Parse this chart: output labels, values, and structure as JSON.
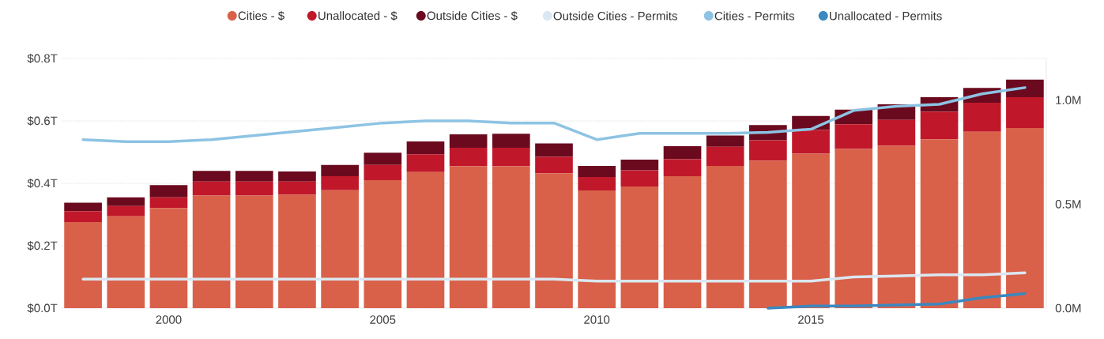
{
  "chart_data": {
    "type": "bar",
    "stacked": true,
    "legend": "top",
    "grid": "y",
    "x": [
      1998,
      1999,
      2000,
      2001,
      2002,
      2003,
      2004,
      2005,
      2006,
      2007,
      2008,
      2009,
      2010,
      2011,
      2012,
      2013,
      2014,
      2015,
      2016,
      2017,
      2018,
      2019,
      2020
    ],
    "xlim": [
      1997.5,
      2020.5
    ],
    "xticks": [
      2000,
      2005,
      2010,
      2015
    ],
    "ylim": [
      0,
      0.8
    ],
    "yticks": [
      {
        "value": 0,
        "label": "$0.0T"
      },
      {
        "value": 0.2,
        "label": "$0.2T"
      },
      {
        "value": 0.4,
        "label": "$0.4T"
      },
      {
        "value": 0.6,
        "label": "$0.6T"
      },
      {
        "value": 0.8,
        "label": "$0.8T"
      }
    ],
    "y2lim": [
      0,
      1.2
    ],
    "y2ticks": [
      {
        "value": 0,
        "label": "0.0M"
      },
      {
        "value": 0.5,
        "label": "0.5M"
      },
      {
        "value": 1.0,
        "label": "1.0M"
      }
    ],
    "series": [
      {
        "name": "Cities - $",
        "color": "#d9614a",
        "values": [
          0.276,
          0.294,
          0.321,
          0.361,
          0.361,
          0.363,
          0.378,
          0.41,
          0.436,
          0.455,
          0.455,
          0.432,
          0.377,
          0.39,
          0.423,
          0.456,
          0.473,
          0.495,
          0.51,
          0.52,
          0.541,
          0.565,
          0.577
        ]
      },
      {
        "name": "Unallocated - $",
        "color": "#c0182a",
        "values": [
          0.035,
          0.033,
          0.034,
          0.045,
          0.045,
          0.043,
          0.045,
          0.049,
          0.057,
          0.059,
          0.059,
          0.053,
          0.043,
          0.052,
          0.054,
          0.061,
          0.065,
          0.076,
          0.079,
          0.083,
          0.088,
          0.093,
          0.099
        ]
      },
      {
        "name": "Outside Cities - $",
        "color": "#6b0a1e",
        "values": [
          0.027,
          0.028,
          0.039,
          0.034,
          0.034,
          0.032,
          0.036,
          0.039,
          0.041,
          0.043,
          0.045,
          0.043,
          0.036,
          0.034,
          0.042,
          0.036,
          0.049,
          0.045,
          0.047,
          0.05,
          0.047,
          0.048,
          0.056
        ]
      },
      {
        "name": "Outside Cities - Permits",
        "type": "line",
        "axis": "y2",
        "color": "#dbe7f2",
        "values": [
          0.14,
          0.14,
          0.14,
          0.14,
          0.14,
          0.14,
          0.14,
          0.14,
          0.14,
          0.14,
          0.14,
          0.14,
          0.13,
          0.13,
          0.13,
          0.13,
          0.13,
          0.13,
          0.15,
          0.155,
          0.16,
          0.16,
          0.17
        ]
      },
      {
        "name": "Cities - Permits",
        "type": "line",
        "axis": "y2",
        "color": "#8dc3e3",
        "values": [
          0.81,
          0.8,
          0.8,
          0.81,
          0.83,
          0.85,
          0.87,
          0.89,
          0.9,
          0.9,
          0.89,
          0.89,
          0.81,
          0.84,
          0.84,
          0.84,
          0.845,
          0.86,
          0.95,
          0.97,
          0.98,
          1.03,
          1.06
        ]
      },
      {
        "name": "Unallocated - Permits",
        "type": "line",
        "axis": "y2",
        "color": "#3a88c0",
        "values": [
          null,
          null,
          null,
          null,
          null,
          null,
          null,
          null,
          null,
          null,
          null,
          null,
          null,
          null,
          null,
          null,
          0.0,
          0.01,
          0.01,
          0.015,
          0.02,
          0.05,
          0.07
        ]
      }
    ]
  }
}
